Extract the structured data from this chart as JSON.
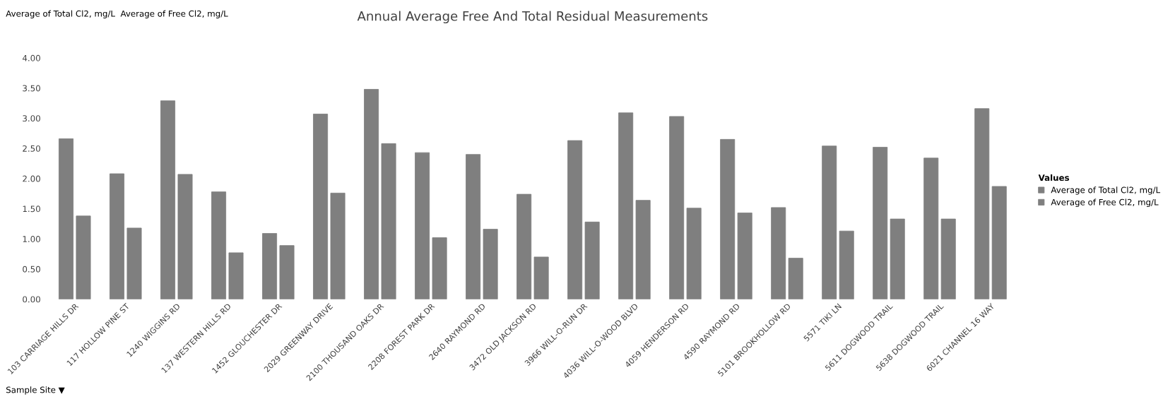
{
  "chart_data": {
    "type": "bar",
    "title": "Annual Average Free And Total Residual Measurements",
    "categories": [
      "103 CARRIAGE HILLS DR",
      "117 HOLLOW PINE ST",
      "1240 WIGGINS RD",
      "137 WESTERN HILLS RD",
      "1452 GLOUCHESTER DR",
      "2029 GREENWAY DRIVE",
      "2100 THOUSAND OAKS DR",
      "2208 FOREST PARK DR",
      "2640 RAYMOND RD",
      "3472 OLD JACKSON RD",
      "3966 WILL-O-RUN DR",
      "4036 WILL-O-WOOD BLVD",
      "4059 HENDERSON RD",
      "4590 RAYMOND RD",
      "5101 BROOKHOLLOW RD",
      "5571 TIKI LN",
      "5611 DOGWOOD TRAIL",
      "5638 DOGWOOD TRAIL",
      "6021 CHANNEL 16 WAY"
    ],
    "series": [
      {
        "name": "Average of Total Cl2, mg/L",
        "color": "#7f7f7f",
        "values": [
          2.66,
          2.08,
          3.29,
          1.78,
          1.09,
          3.07,
          3.48,
          2.43,
          2.4,
          1.74,
          2.63,
          3.09,
          3.03,
          2.65,
          1.52,
          2.54,
          2.52,
          2.34,
          3.16
        ]
      },
      {
        "name": "Average of Free Cl2, mg/L",
        "color": "#7f7f7f",
        "values": [
          1.38,
          1.18,
          2.07,
          0.77,
          0.89,
          1.76,
          2.58,
          1.02,
          1.16,
          0.7,
          1.28,
          1.64,
          1.51,
          1.43,
          0.68,
          1.13,
          1.33,
          1.33,
          1.87
        ]
      }
    ],
    "ylim": [
      0,
      4
    ],
    "yticks": [
      {
        "value": 0,
        "label": "0.00"
      },
      {
        "value": 0.5,
        "label": "0.50"
      },
      {
        "value": 1,
        "label": "1.00"
      },
      {
        "value": 1.5,
        "label": "1.50"
      },
      {
        "value": 2,
        "label": "2.00"
      },
      {
        "value": 2.5,
        "label": "2.50"
      },
      {
        "value": 3,
        "label": "3.00"
      },
      {
        "value": 3.5,
        "label": "3.50"
      },
      {
        "value": 4,
        "label": "4.00"
      }
    ],
    "legend": "right",
    "legend_title": "Values",
    "grid": false,
    "annotations": [
      "Average of Total Cl2, mg/L  Average of Free Cl2, mg/L",
      "Sample Site ▼"
    ]
  }
}
